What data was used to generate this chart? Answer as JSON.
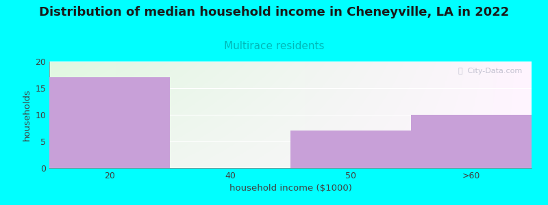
{
  "categories": [
    "20",
    "40",
    "50",
    ">60"
  ],
  "values": [
    17,
    0,
    7,
    10
  ],
  "bar_color": "#c8a0d8",
  "title": "Distribution of median household income in Cheneyville, LA in 2022",
  "subtitle": "Multirace residents",
  "subtitle_color": "#00b8b8",
  "xlabel": "household income ($1000)",
  "ylabel": "households",
  "ylim": [
    0,
    20
  ],
  "yticks": [
    0,
    5,
    10,
    15,
    20
  ],
  "background_color": "#00ffff",
  "title_fontsize": 13,
  "subtitle_fontsize": 11,
  "label_fontsize": 9.5,
  "tick_fontsize": 9,
  "watermark": "ⓘ  City-Data.com",
  "bar_width": 1.0
}
